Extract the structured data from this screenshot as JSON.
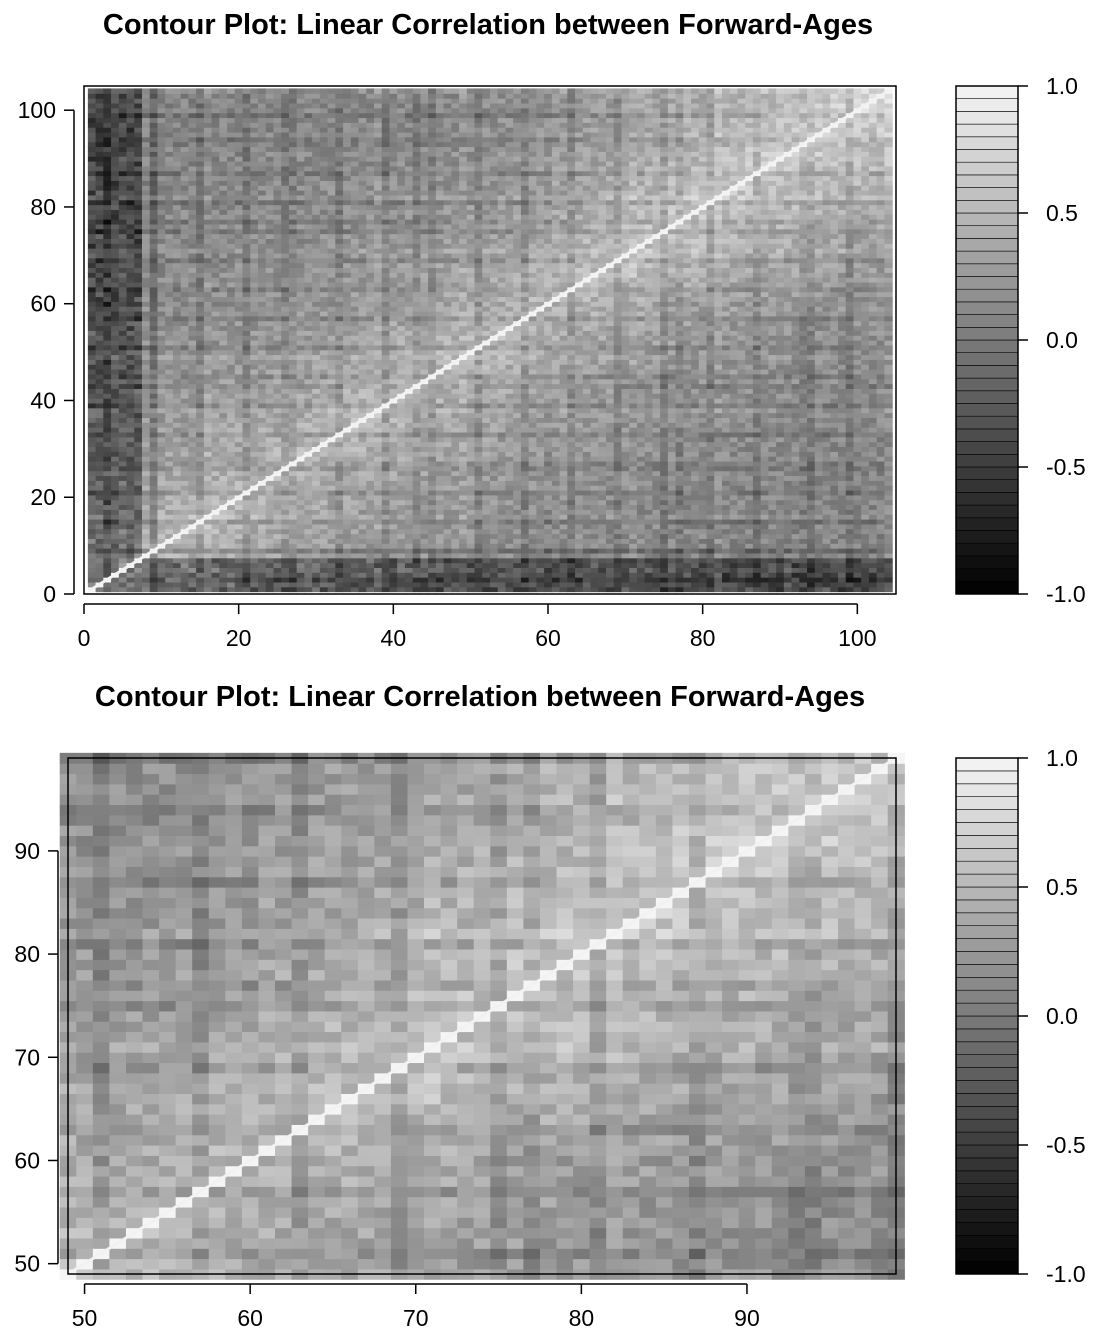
{
  "chart_data": [
    {
      "type": "heatmap",
      "subtype": "filled-contour",
      "title": "Contour Plot: Linear Correlation between Forward-Ages",
      "xlabel": "",
      "ylabel": "",
      "xlim": [
        0,
        105
      ],
      "ylim": [
        0,
        105
      ],
      "x_ticks": [
        0,
        20,
        40,
        60,
        80,
        100
      ],
      "y_ticks": [
        0,
        20,
        40,
        60,
        80,
        100
      ],
      "x_tick_labels": [
        "0",
        "20",
        "40",
        "60",
        "80",
        "100"
      ],
      "y_tick_labels": [
        "0",
        "20",
        "40",
        "60",
        "80",
        "100"
      ],
      "data_range": [
        1,
        104
      ],
      "diagonal_value": 1.0,
      "colorscale": "grayscale",
      "colorbar": {
        "range": [
          -1.0,
          1.0
        ],
        "ticks": [
          1.0,
          0.5,
          0.0,
          -0.5,
          -1.0
        ],
        "tick_labels": [
          "1.0",
          "0.5",
          "0.0",
          "-0.5",
          "-1.0"
        ],
        "levels": 40
      },
      "grid": false,
      "legend": "right"
    },
    {
      "type": "heatmap",
      "subtype": "filled-contour",
      "title": "Contour Plot: Linear Correlation between Forward-Ages",
      "xlabel": "",
      "ylabel": "",
      "xlim": [
        49,
        99
      ],
      "ylim": [
        49,
        99
      ],
      "x_ticks": [
        50,
        60,
        70,
        80,
        90
      ],
      "y_ticks": [
        50,
        60,
        70,
        80,
        90
      ],
      "x_tick_labels": [
        "50",
        "60",
        "70",
        "80",
        "90"
      ],
      "y_tick_labels": [
        "50",
        "60",
        "70",
        "80",
        "90"
      ],
      "data_range": [
        49,
        99
      ],
      "diagonal_value": 1.0,
      "colorscale": "grayscale",
      "colorbar": {
        "range": [
          -1.0,
          1.0
        ],
        "ticks": [
          1.0,
          0.5,
          0.0,
          -0.5,
          -1.0
        ],
        "tick_labels": [
          "1.0",
          "0.5",
          "0.0",
          "-0.5",
          "-1.0"
        ],
        "levels": 40
      },
      "grid": false,
      "legend": "right"
    }
  ]
}
